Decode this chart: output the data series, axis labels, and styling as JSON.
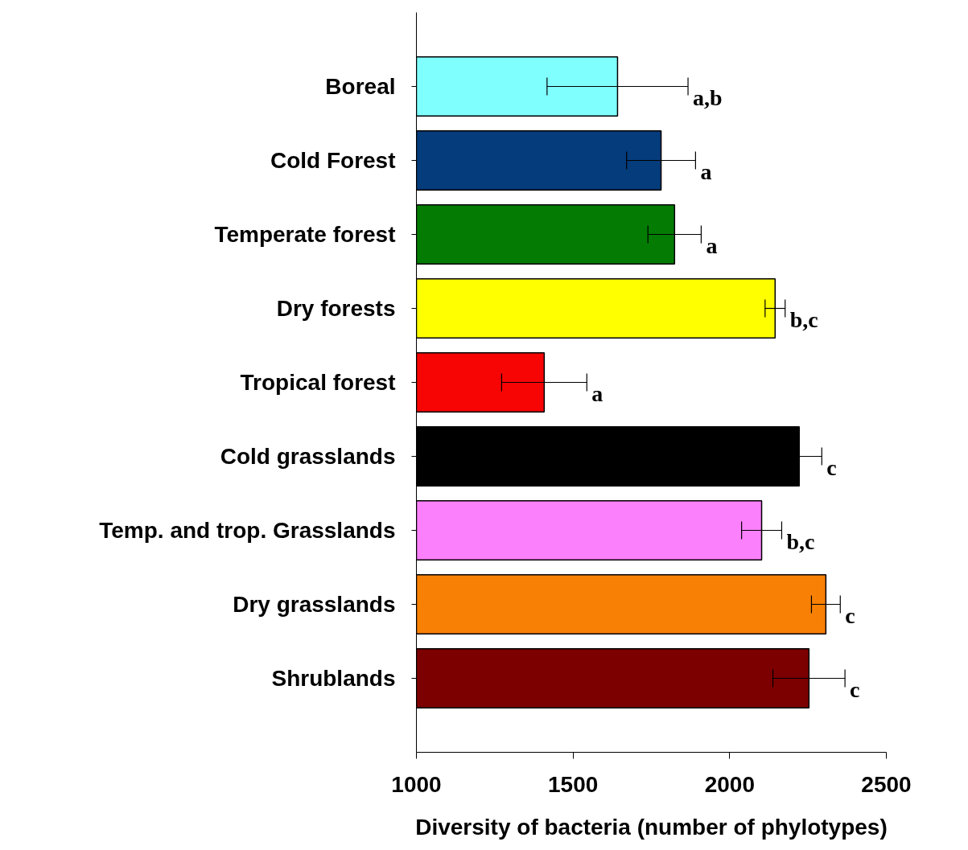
{
  "chart_data": {
    "type": "bar",
    "orientation": "horizontal",
    "xlabel": "Diversity of bacteria (number of phylotypes)",
    "categories": [
      "Boreal",
      "Cold Forest",
      "Temperate forest",
      "Dry forests",
      "Tropical forest",
      "Cold grasslands",
      "Temp. and trop. Grasslands",
      "Dry grasslands",
      "Shrublands"
    ],
    "values": [
      1642,
      1781,
      1824,
      2145,
      1408,
      2222,
      2102,
      2307,
      2253
    ],
    "errors": [
      225,
      110,
      85,
      32,
      136,
      72,
      64,
      46,
      115
    ],
    "colors": [
      "#80ffff",
      "#043c7c",
      "#047c04",
      "#ffff00",
      "#f70404",
      "#000000",
      "#fb80fb",
      "#f88004",
      "#7c0000"
    ],
    "xlim": [
      1000,
      2500
    ],
    "xticks": [
      1000,
      1500,
      2000,
      2500
    ],
    "grid": false,
    "annotations": [
      {
        "text": "a,b",
        "x": 1867,
        "y": "Boreal"
      },
      {
        "text": "a",
        "x": 1891,
        "y": "Cold Forest"
      },
      {
        "text": "a",
        "x": 1909,
        "y": "Temperate forest"
      },
      {
        "text": "b,c",
        "x": 2177,
        "y": "Dry forests"
      },
      {
        "text": "a",
        "x": 1544,
        "y": "Tropical forest"
      },
      {
        "text": "c",
        "x": 2294,
        "y": "Cold grasslands"
      },
      {
        "text": "b,c",
        "x": 2166,
        "y": "Temp. and trop. Grasslands"
      },
      {
        "text": "c",
        "x": 2353,
        "y": "Dry grasslands"
      },
      {
        "text": "c",
        "x": 2368,
        "y": "Shrublands"
      }
    ]
  }
}
